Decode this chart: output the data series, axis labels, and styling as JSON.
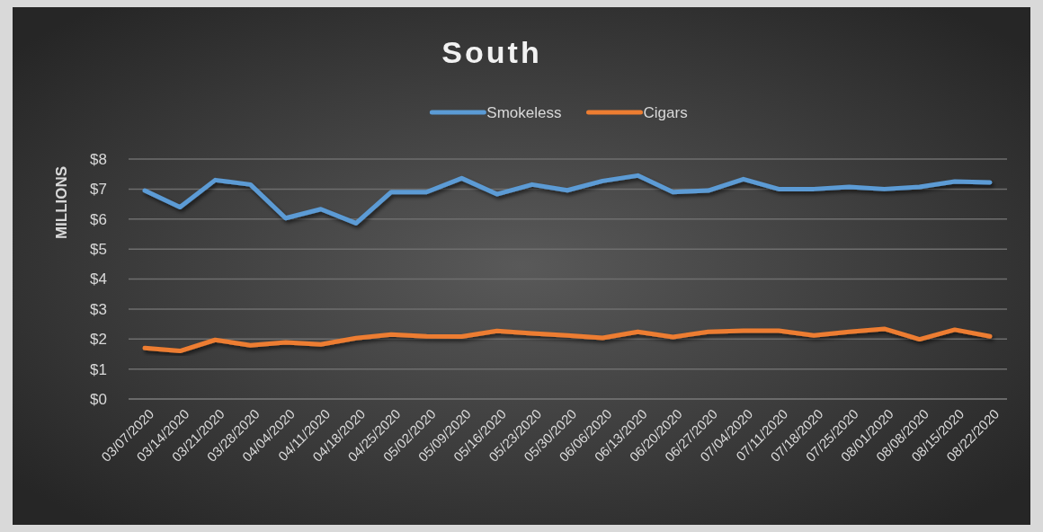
{
  "chart_data": {
    "type": "line",
    "title": "South",
    "ylabel": "MILLIONS",
    "categories": [
      "03/07/2020",
      "03/14/2020",
      "03/21/2020",
      "03/28/2020",
      "04/04/2020",
      "04/11/2020",
      "04/18/2020",
      "04/25/2020",
      "05/02/2020",
      "05/09/2020",
      "05/16/2020",
      "05/23/2020",
      "05/30/2020",
      "06/06/2020",
      "06/13/2020",
      "06/20/2020",
      "06/27/2020",
      "07/04/2020",
      "07/11/2020",
      "07/18/2020",
      "07/25/2020",
      "08/01/2020",
      "08/08/2020",
      "08/15/2020",
      "08/22/2020"
    ],
    "series": [
      {
        "name": "Smokeless",
        "color": "#5b9bd5",
        "values": [
          6.95,
          6.4,
          7.3,
          7.15,
          6.03,
          6.33,
          5.86,
          6.9,
          6.9,
          7.36,
          6.83,
          7.15,
          6.96,
          7.27,
          7.45,
          6.9,
          6.95,
          7.33,
          7.0,
          7.0,
          7.07,
          7.0,
          7.07,
          7.25,
          7.22
        ]
      },
      {
        "name": "Cigars",
        "color": "#ed7d31",
        "values": [
          1.7,
          1.6,
          1.97,
          1.79,
          1.89,
          1.82,
          2.03,
          2.15,
          2.09,
          2.08,
          2.27,
          2.19,
          2.12,
          2.04,
          2.24,
          2.07,
          2.24,
          2.28,
          2.28,
          2.12,
          2.24,
          2.34,
          1.99,
          2.31,
          2.09
        ]
      }
    ],
    "ylim": [
      0,
      8
    ],
    "yticks": [
      {
        "value": 0,
        "label": "$0"
      },
      {
        "value": 1,
        "label": "$1"
      },
      {
        "value": 2,
        "label": "$2"
      },
      {
        "value": 3,
        "label": "$3"
      },
      {
        "value": 4,
        "label": "$4"
      },
      {
        "value": 5,
        "label": "$5"
      },
      {
        "value": 6,
        "label": "$6"
      },
      {
        "value": 7,
        "label": "$7"
      },
      {
        "value": 8,
        "label": "$8"
      }
    ],
    "grid": "y",
    "legend": "top"
  }
}
